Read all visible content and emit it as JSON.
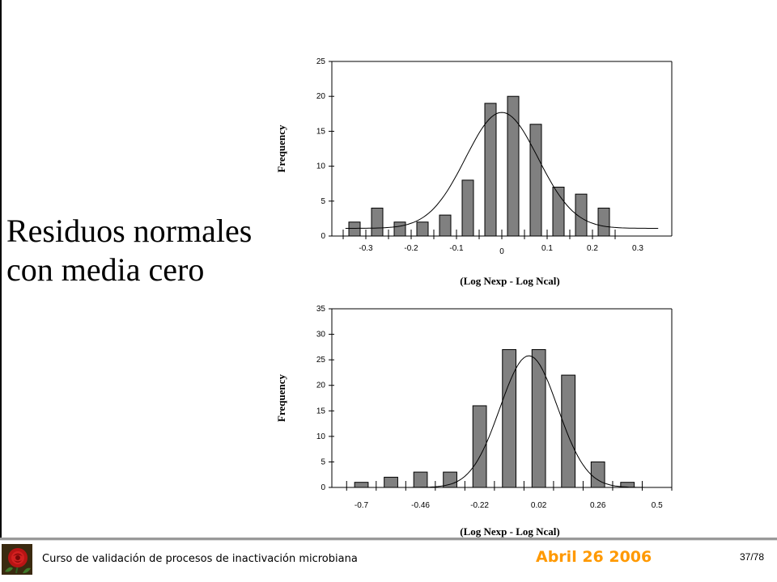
{
  "slide": {
    "headline_line1": "Residuos normales",
    "headline_line2": "con media cero"
  },
  "footer": {
    "course": "Curso de validación de procesos de inactivación microbiana",
    "date": "Abril 26 2006",
    "page": "37/78"
  },
  "colors": {
    "bar_fill": "#808080",
    "date_accent": "#ff9900",
    "footer_rule": "#999999"
  },
  "chart_data": [
    {
      "type": "bar",
      "xlabel": "(Log Nexp - Log Ncal)",
      "ylabel": "Frequency",
      "ylim": [
        0,
        25
      ],
      "yticks": [
        0,
        5,
        10,
        15,
        20,
        25
      ],
      "xticks": [
        "-0.3",
        "-0.2",
        "-0.1",
        "0",
        "0.1",
        "0.2",
        "0.3"
      ],
      "xtick_values": [
        -0.3,
        -0.2,
        -0.1,
        0,
        0.1,
        0.2,
        0.3
      ],
      "xlim": [
        -0.375,
        0.375
      ],
      "bin_centers": [
        -0.325,
        -0.275,
        -0.225,
        -0.175,
        -0.125,
        -0.075,
        -0.025,
        0.025,
        0.075,
        0.125,
        0.175,
        0.225
      ],
      "values": [
        2,
        4,
        2,
        2,
        3,
        8,
        19,
        20,
        16,
        7,
        6,
        4
      ],
      "bar_width": 0.025,
      "curve": {
        "type": "normal",
        "mean": 0.0,
        "sd": 0.08,
        "peak": 16.6,
        "baseline": 1.1,
        "x_start": -0.345,
        "x_end": 0.345
      }
    },
    {
      "type": "bar",
      "xlabel": "(Log Nexp - Log Ncal)",
      "ylabel": "Frequency",
      "ylim": [
        0,
        35
      ],
      "yticks": [
        0,
        5,
        10,
        15,
        20,
        25,
        30,
        35
      ],
      "xticks": [
        "-0.7",
        "-0.46",
        "-0.22",
        "0.02",
        "0.26",
        "0.5"
      ],
      "xtick_values": [
        -0.7,
        -0.46,
        -0.22,
        0.02,
        0.26,
        0.5
      ],
      "xlim": [
        -0.82,
        0.56
      ],
      "bin_centers": [
        -0.7,
        -0.58,
        -0.46,
        -0.34,
        -0.22,
        -0.1,
        0.02,
        0.14,
        0.26,
        0.38,
        0.5
      ],
      "values": [
        1,
        2,
        3,
        3,
        16,
        27,
        27,
        22,
        5,
        1,
        0
      ],
      "bar_width": 0.055,
      "curve": {
        "type": "normal",
        "mean": -0.02,
        "sd": 0.117,
        "peak": 25.8,
        "baseline": 0,
        "x_start": -0.75,
        "x_end": 0.56
      }
    }
  ]
}
